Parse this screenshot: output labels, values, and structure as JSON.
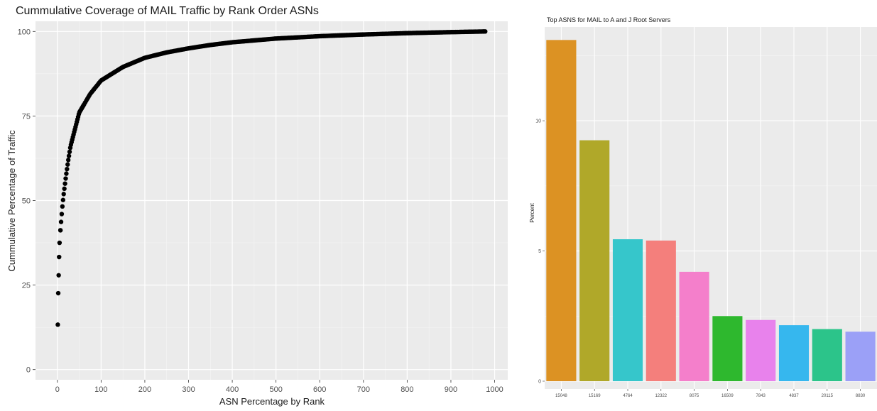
{
  "chart_data": [
    {
      "type": "scatter",
      "title": "Cummulative Coverage of MAIL Traffic by Rank Order ASNs",
      "xlabel": "ASN Percentage by Rank",
      "ylabel": "Cummulative Percentage of Traffic",
      "xlim": [
        -50,
        1030
      ],
      "ylim": [
        -3,
        103
      ],
      "xticks": [
        0,
        100,
        200,
        300,
        400,
        500,
        600,
        700,
        800,
        900,
        1000
      ],
      "yticks": [
        0,
        25,
        50,
        75,
        100
      ],
      "grid": true,
      "point_color": "#000000",
      "sample_points": [
        {
          "x": 1,
          "y": 13.3
        },
        {
          "x": 2,
          "y": 22.6
        },
        {
          "x": 3,
          "y": 27.9
        },
        {
          "x": 4,
          "y": 33.3
        },
        {
          "x": 5,
          "y": 37.5
        },
        {
          "x": 7,
          "y": 41.2
        },
        {
          "x": 9,
          "y": 44.5
        },
        {
          "x": 12,
          "y": 49.0
        },
        {
          "x": 15,
          "y": 52.5
        },
        {
          "x": 20,
          "y": 57.5
        },
        {
          "x": 25,
          "y": 62.0
        },
        {
          "x": 30,
          "y": 66.0
        },
        {
          "x": 40,
          "y": 71.0
        },
        {
          "x": 50,
          "y": 76.0
        },
        {
          "x": 75,
          "y": 81.5
        },
        {
          "x": 100,
          "y": 85.5
        },
        {
          "x": 150,
          "y": 89.5
        },
        {
          "x": 200,
          "y": 92.2
        },
        {
          "x": 250,
          "y": 93.8
        },
        {
          "x": 300,
          "y": 95.0
        },
        {
          "x": 350,
          "y": 96.0
        },
        {
          "x": 400,
          "y": 96.8
        },
        {
          "x": 500,
          "y": 97.9
        },
        {
          "x": 600,
          "y": 98.6
        },
        {
          "x": 700,
          "y": 99.1
        },
        {
          "x": 800,
          "y": 99.5
        },
        {
          "x": 900,
          "y": 99.8
        },
        {
          "x": 980,
          "y": 100.0
        }
      ]
    },
    {
      "type": "bar",
      "title": "Top ASNS for MAIL to A and J Root Servers",
      "xlabel": "",
      "ylabel": "Percent",
      "ylim": [
        -0.3,
        13.6
      ],
      "yticks": [
        0,
        5,
        10
      ],
      "grid": true,
      "categories": [
        "15048",
        "15169",
        "4764",
        "12322",
        "8075",
        "16509",
        "7843",
        "4837",
        "20115",
        "8830"
      ],
      "values": [
        13.1,
        9.25,
        5.45,
        5.4,
        4.2,
        2.5,
        2.35,
        2.15,
        2.0,
        1.9
      ],
      "colors": [
        "#DC9223",
        "#B0A829",
        "#36C6CB",
        "#F47F7C",
        "#F47FCB",
        "#2EB82E",
        "#E882EC",
        "#36B7EE",
        "#2CC48A",
        "#9BA0F7"
      ]
    }
  ]
}
